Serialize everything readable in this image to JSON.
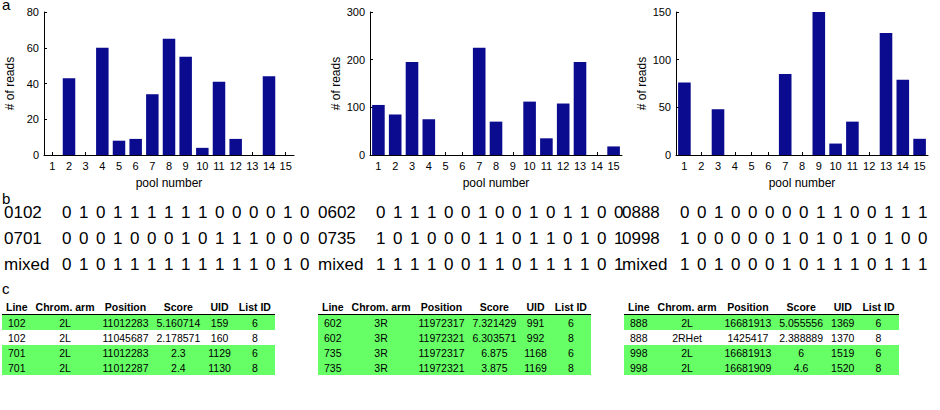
{
  "panels": [
    "a",
    "b",
    "c"
  ],
  "chart_data": [
    {
      "type": "bar",
      "x_label": "pool number",
      "y_label": "# of reads",
      "categories": [
        "1",
        "2",
        "3",
        "4",
        "5",
        "6",
        "7",
        "8",
        "9",
        "10",
        "11",
        "12",
        "13",
        "14",
        "15"
      ],
      "values": [
        0,
        43,
        0,
        60,
        8,
        9,
        34,
        65,
        55,
        4,
        41,
        9,
        0,
        44,
        0
      ],
      "color": "#0b0b8f",
      "ylim": [
        0,
        80
      ],
      "yticks": [
        0,
        20,
        40,
        60,
        80
      ],
      "grid": false
    },
    {
      "type": "bar",
      "x_label": "pool number",
      "y_label": "# of reads",
      "categories": [
        "1",
        "2",
        "3",
        "4",
        "5",
        "6",
        "7",
        "8",
        "9",
        "10",
        "11",
        "12",
        "13",
        "14",
        "15"
      ],
      "values": [
        105,
        85,
        195,
        75,
        0,
        0,
        225,
        70,
        0,
        112,
        35,
        108,
        195,
        0,
        18
      ],
      "color": "#0b0b8f",
      "ylim": [
        0,
        300
      ],
      "yticks": [
        0,
        100,
        200,
        300
      ],
      "grid": false
    },
    {
      "type": "bar",
      "x_label": "pool number",
      "y_label": "# of reads",
      "categories": [
        "1",
        "2",
        "3",
        "4",
        "5",
        "6",
        "7",
        "8",
        "9",
        "10",
        "11",
        "12",
        "13",
        "14",
        "15"
      ],
      "values": [
        76,
        0,
        48,
        0,
        0,
        0,
        85,
        0,
        150,
        12,
        35,
        0,
        128,
        79,
        17
      ],
      "color": "#0b0b8f",
      "ylim": [
        0,
        150
      ],
      "yticks": [
        0,
        50,
        100,
        150
      ],
      "grid": false
    }
  ],
  "codes": [
    {
      "rows": [
        {
          "label": "0102",
          "bits": [
            0,
            1,
            0,
            1,
            1,
            1,
            1,
            1,
            1,
            0,
            0,
            0,
            0,
            1,
            0
          ]
        },
        {
          "label": "0701",
          "bits": [
            0,
            0,
            0,
            1,
            0,
            0,
            0,
            1,
            0,
            1,
            1,
            1,
            0,
            0,
            0
          ]
        },
        {
          "label": "mixed",
          "bits": [
            0,
            1,
            0,
            1,
            1,
            1,
            1,
            1,
            1,
            1,
            1,
            1,
            0,
            1,
            0
          ]
        }
      ]
    },
    {
      "rows": [
        {
          "label": "0602",
          "bits": [
            0,
            1,
            1,
            1,
            0,
            0,
            1,
            0,
            0,
            1,
            0,
            1,
            1,
            0,
            0
          ]
        },
        {
          "label": "0735",
          "bits": [
            1,
            0,
            1,
            0,
            0,
            0,
            1,
            1,
            0,
            1,
            1,
            0,
            1,
            0,
            1
          ]
        },
        {
          "label": "mixed",
          "bits": [
            1,
            1,
            1,
            1,
            0,
            0,
            1,
            1,
            0,
            1,
            1,
            1,
            1,
            0,
            1
          ]
        }
      ]
    },
    {
      "rows": [
        {
          "label": "0888",
          "bits": [
            0,
            0,
            1,
            0,
            0,
            0,
            0,
            0,
            1,
            1,
            0,
            0,
            1,
            1,
            1
          ]
        },
        {
          "label": "0998",
          "bits": [
            1,
            0,
            0,
            0,
            0,
            0,
            1,
            0,
            1,
            0,
            1,
            0,
            1,
            0,
            0
          ]
        },
        {
          "label": "mixed",
          "bits": [
            1,
            0,
            1,
            0,
            0,
            0,
            1,
            0,
            1,
            1,
            1,
            0,
            1,
            1,
            1
          ]
        }
      ]
    }
  ],
  "tables": [
    {
      "columns": [
        "Line",
        "Chrom. arm",
        "Position",
        "Score",
        "UID",
        "List ID"
      ],
      "highlight_color": "#66ff66",
      "rows": [
        {
          "cells": [
            "102",
            "2L",
            "11012283",
            "5.160714",
            "159",
            "6"
          ],
          "highlighted": true
        },
        {
          "cells": [
            "102",
            "2L",
            "11045687",
            "2.178571",
            "160",
            "8"
          ],
          "highlighted": false
        },
        {
          "cells": [
            "701",
            "2L",
            "11012283",
            "2.3",
            "1129",
            "6"
          ],
          "highlighted": true
        },
        {
          "cells": [
            "701",
            "2L",
            "11012287",
            "2.4",
            "1130",
            "8"
          ],
          "highlighted": true
        }
      ]
    },
    {
      "columns": [
        "Line",
        "Chrom. arm",
        "Position",
        "Score",
        "UID",
        "List ID"
      ],
      "highlight_color": "#66ff66",
      "rows": [
        {
          "cells": [
            "602",
            "3R",
            "11972317",
            "7.321429",
            "991",
            "6"
          ],
          "highlighted": true
        },
        {
          "cells": [
            "602",
            "3R",
            "11972321",
            "6.303571",
            "992",
            "8"
          ],
          "highlighted": true
        },
        {
          "cells": [
            "735",
            "3R",
            "11972317",
            "6.875",
            "1168",
            "6"
          ],
          "highlighted": true
        },
        {
          "cells": [
            "735",
            "3R",
            "11972321",
            "3.875",
            "1169",
            "8"
          ],
          "highlighted": true
        }
      ]
    },
    {
      "columns": [
        "Line",
        "Chrom. arm",
        "Position",
        "Score",
        "UID",
        "List ID"
      ],
      "highlight_color": "#66ff66",
      "rows": [
        {
          "cells": [
            "888",
            "2L",
            "16681913",
            "5.055556",
            "1369",
            "6"
          ],
          "highlighted": true
        },
        {
          "cells": [
            "888",
            "2RHet",
            "1425417",
            "2.388889",
            "1370",
            "8"
          ],
          "highlighted": false
        },
        {
          "cells": [
            "998",
            "2L",
            "16681913",
            "6",
            "1519",
            "6"
          ],
          "highlighted": true
        },
        {
          "cells": [
            "998",
            "2L",
            "16681909",
            "4.6",
            "1520",
            "8"
          ],
          "highlighted": true
        }
      ]
    }
  ]
}
